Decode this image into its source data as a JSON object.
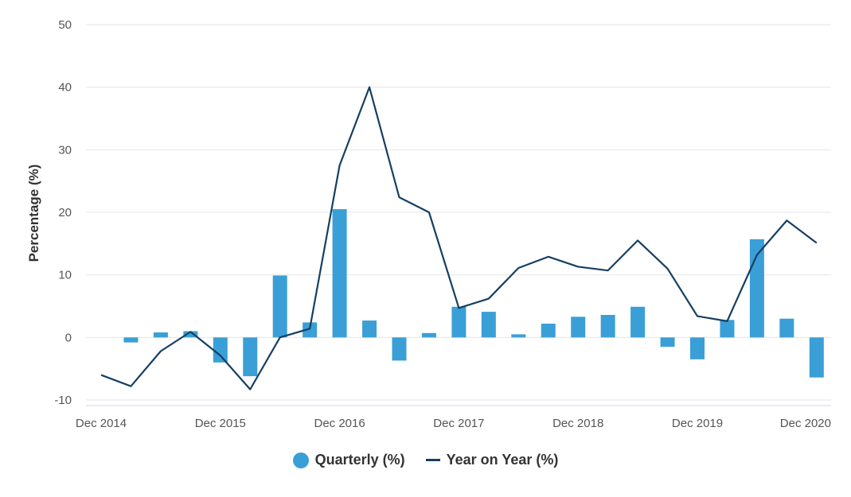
{
  "chart_data": {
    "type": "bar+line",
    "title": "",
    "xlabel": "",
    "ylabel": "Percentage (%)",
    "ylim": [
      -10,
      50
    ],
    "yticks": [
      -10,
      0,
      10,
      20,
      30,
      40,
      50
    ],
    "x_tick_labels": [
      {
        "index": 0,
        "label": "Dec 2014"
      },
      {
        "index": 4,
        "label": "Dec 2015"
      },
      {
        "index": 8,
        "label": "Dec 2016"
      },
      {
        "index": 12,
        "label": "Dec 2017"
      },
      {
        "index": 16,
        "label": "Dec 2018"
      },
      {
        "index": 20,
        "label": "Dec 2019"
      },
      {
        "index": 24,
        "label": "Dec 2020"
      }
    ],
    "categories": [
      "Dec 2014",
      "Mar 2015",
      "Jun 2015",
      "Sep 2015",
      "Dec 2015",
      "Mar 2016",
      "Jun 2016",
      "Sep 2016",
      "Dec 2016",
      "Mar 2017",
      "Jun 2017",
      "Sep 2017",
      "Dec 2017",
      "Mar 2018",
      "Jun 2018",
      "Sep 2018",
      "Dec 2018",
      "Mar 2019",
      "Jun 2019",
      "Sep 2019",
      "Dec 2019",
      "Mar 2020",
      "Jun 2020",
      "Sep 2020",
      "Dec 2020"
    ],
    "series": [
      {
        "name": "Quarterly (%)",
        "type": "bar",
        "color": "#3a9fd6",
        "values": [
          0,
          -0.8,
          0.8,
          1.0,
          -4.0,
          -6.2,
          9.9,
          2.4,
          20.5,
          2.7,
          -3.7,
          0.7,
          4.9,
          4.1,
          0.5,
          2.2,
          3.3,
          3.6,
          4.9,
          -1.5,
          -3.5,
          2.8,
          15.7,
          3.0,
          -6.4
        ]
      },
      {
        "name": "Year on Year (%)",
        "type": "line",
        "color": "#163f63",
        "values": [
          -6.0,
          -7.8,
          -2.2,
          0.9,
          -2.9,
          -8.3,
          0.0,
          1.4,
          27.5,
          40.0,
          22.4,
          20.0,
          4.7,
          6.2,
          11.1,
          12.9,
          11.3,
          10.7,
          15.5,
          11.0,
          3.4,
          2.6,
          13.2,
          18.7,
          15.1
        ]
      }
    ],
    "legend_position": "bottom-center",
    "grid": true
  }
}
